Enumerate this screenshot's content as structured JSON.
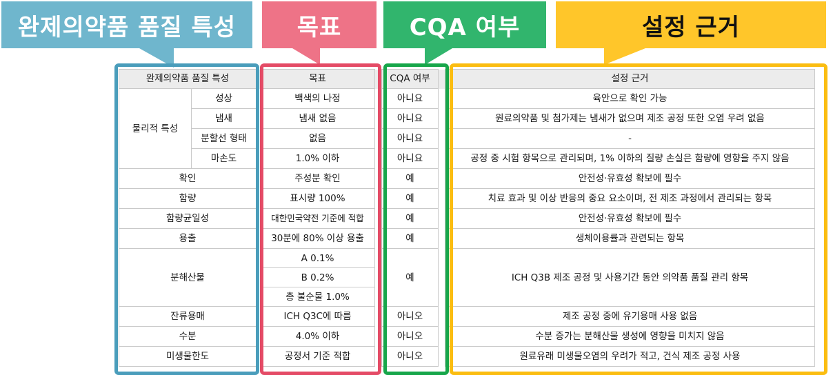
{
  "banners": {
    "attribute": "완제의약품 품질 특성",
    "target": "목표",
    "cqa": "CQA 여부",
    "rationale": "설정 근거"
  },
  "colors": {
    "attribute": "#6fb6cd",
    "target": "#ee7387",
    "cqa": "#31b56d",
    "rationale": "#ffc62a"
  },
  "table": {
    "headers": {
      "attribute": "완제의약품 품질 특성",
      "target": "목표",
      "cqa": "CQA 여부",
      "rationale": "설정 근거"
    },
    "physical": {
      "group": "물리적 특성",
      "rows": [
        {
          "sub": "성상",
          "target": "백색의 나정",
          "cqa": "아니요",
          "rationale": "육안으로 확인 가능"
        },
        {
          "sub": "냄새",
          "target": "냄새 없음",
          "cqa": "아니요",
          "rationale": "원료의약품 및 첨가제는 냄새가 없으며 제조 공정 또한 오염 우려 없음"
        },
        {
          "sub": "분할선 형태",
          "target": "없음",
          "cqa": "아니요",
          "rationale": "-"
        },
        {
          "sub": "마손도",
          "target": "1.0% 이하",
          "cqa": "아니요",
          "rationale": "공정 중 시험 항목으로 관리되며, 1% 이하의 질량 손실은 함량에 영향을 주지 않음"
        }
      ]
    },
    "rows": [
      {
        "attr": "확인",
        "target": "주성분 확인",
        "cqa": "예",
        "rationale": "안전성·유효성 확보에 필수"
      },
      {
        "attr": "함량",
        "target": "표시량 100%",
        "cqa": "예",
        "rationale": "치료 효과 및 이상 반응의 중요 요소이며, 전 제조 과정에서 관리되는 항목"
      },
      {
        "attr": "함량균일성",
        "target": "대한민국약전 기준에 적합",
        "cqa": "예",
        "rationale": "안전성·유효성 확보에 필수"
      },
      {
        "attr": "용출",
        "target": "30분에 80% 이상 용출",
        "cqa": "예",
        "rationale": "생체이용률과 관련되는 항목"
      }
    ],
    "degradation": {
      "attr": "분해산물",
      "targets": [
        "A 0.1%",
        "B 0.2%",
        "총 불순물 1.0%"
      ],
      "cqa": "예",
      "rationale": "ICH Q3B 제조 공정 및 사용기간 동안 의약품 품질 관리 항목"
    },
    "rows2": [
      {
        "attr": "잔류용매",
        "target": "ICH Q3C에 따름",
        "cqa": "아니오",
        "rationale": "제조 공정 중에 유기용매 사용 없음"
      },
      {
        "attr": "수분",
        "target": "4.0% 이하",
        "cqa": "아니오",
        "rationale": "수분 증가는 분해산물 생성에 영향을 미치지 않음"
      },
      {
        "attr": "미생물한도",
        "target": "공정서 기준 적합",
        "cqa": "아니오",
        "rationale": "원료유래 미생물오염의 우려가 적고, 건식 제조 공정 사용"
      }
    ]
  }
}
